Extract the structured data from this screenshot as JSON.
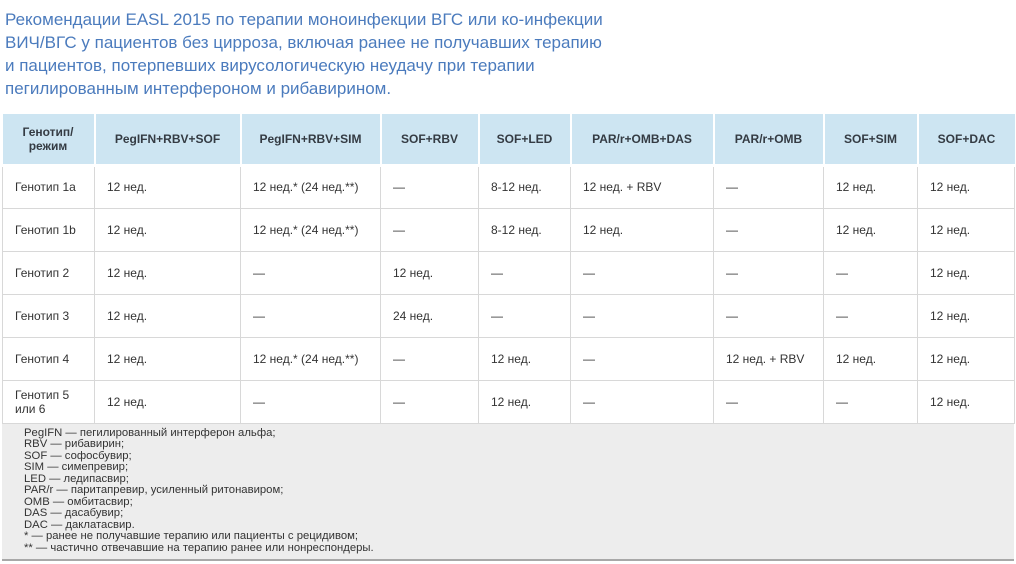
{
  "page": {
    "title": "Рекомендации EASL 2015 по терапии моноинфекции ВГС или ко-инфекции ВИЧ/ВГС у пациентов без цирроза, включая ранее не получавших терапию и пациентов, потерпевших вирусологическую неудачу при терапии пегилированным интерфероном и рибавирином."
  },
  "table": {
    "columns": [
      "Генотип/\nрежим",
      "PegIFN+RBV+SOF",
      "PegIFN+RBV+SIM",
      "SOF+RBV",
      "SOF+LED",
      "PAR/r+OMB+DAS",
      "PAR/r+OMB",
      "SOF+SIM",
      "SOF+DAC"
    ],
    "rows": [
      [
        "Генотип 1a",
        "12 нед.",
        "12 нед.* (24 нед.**)",
        "—",
        "8-12 нед.",
        "12 нед. + RBV",
        "—",
        "12 нед.",
        "12 нед."
      ],
      [
        "Генотип 1b",
        "12 нед.",
        "12 нед.* (24 нед.**)",
        "—",
        "8-12 нед.",
        "12 нед.",
        "—",
        "12 нед.",
        "12 нед."
      ],
      [
        "Генотип 2",
        "12 нед.",
        "—",
        "12 нед.",
        "—",
        "—",
        "—",
        "—",
        "12 нед."
      ],
      [
        "Генотип 3",
        "12 нед.",
        "—",
        "24 нед.",
        "—",
        "—",
        "—",
        "—",
        "12 нед."
      ],
      [
        "Генотип 4",
        "12 нед.",
        "12 нед.* (24 нед.**)",
        "—",
        "12 нед.",
        "—",
        "12 нед. + RBV",
        "12 нед.",
        "12 нед."
      ],
      [
        "Генотип 5 или 6",
        "12 нед.",
        "—",
        "—",
        "12 нед.",
        "—",
        "—",
        "—",
        "12 нед."
      ]
    ]
  },
  "footnotes": [
    "PegIFN — пегилированный интерферон альфа;",
    "RBV — рибавирин;",
    "SOF — софосбувир;",
    "SIM — симепревир;",
    "LED — ледипасвир;",
    "PAR/r — паритапревир, усиленный ритонавиром;",
    "OMB — омбитасвир;",
    "DAS — дасабувир;",
    "DAC — даклатасвир.",
    "* — ранее не получавшие терапию или пациенты с рецидивом;",
    "** — частично отвечавшие на терапию ранее или нонреспондеры."
  ],
  "colors": {
    "title_text": "#4b7bbd",
    "header_bg": "#cde5f2",
    "header_text": "#343b43",
    "cell_text": "#333333",
    "table_border": "#d8d8d8",
    "footnote_bg": "#ededed",
    "footnote_bottom_border": "#a8a8a8"
  }
}
